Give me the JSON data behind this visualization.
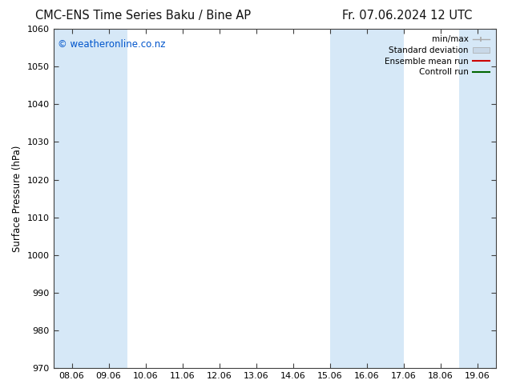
{
  "title_left": "CMC-ENS Time Series Baku / Bine AP",
  "title_right": "Fr. 07.06.2024 12 UTC",
  "ylabel": "Surface Pressure (hPa)",
  "ylim": [
    970,
    1060
  ],
  "yticks": [
    970,
    980,
    990,
    1000,
    1010,
    1020,
    1030,
    1040,
    1050,
    1060
  ],
  "xtick_labels": [
    "08.06",
    "09.06",
    "10.06",
    "11.06",
    "12.06",
    "13.06",
    "14.06",
    "15.06",
    "16.06",
    "17.06",
    "18.06",
    "19.06"
  ],
  "xtick_positions": [
    0,
    1,
    2,
    3,
    4,
    5,
    6,
    7,
    8,
    9,
    10,
    11
  ],
  "xlim": [
    -0.5,
    11.5
  ],
  "shaded_bands": [
    {
      "x_start": -0.5,
      "x_end": 1.5,
      "color": "#d6e8f7"
    },
    {
      "x_start": 7.0,
      "x_end": 9.0,
      "color": "#d6e8f7"
    },
    {
      "x_start": 10.5,
      "x_end": 11.5,
      "color": "#d6e8f7"
    }
  ],
  "watermark_text": "© weatheronline.co.nz",
  "watermark_color": "#0055cc",
  "watermark_fontsize": 8.5,
  "bg_color": "#ffffff",
  "plot_bg_color": "#ffffff",
  "title_fontsize": 10.5,
  "axis_label_fontsize": 8.5,
  "tick_fontsize": 8,
  "legend_fontsize": 7.5,
  "border_color": "#404040",
  "minmax_color": "#aaaaaa",
  "std_color": "#c8d8e8",
  "ens_color": "#cc0000",
  "ctrl_color": "#006600"
}
